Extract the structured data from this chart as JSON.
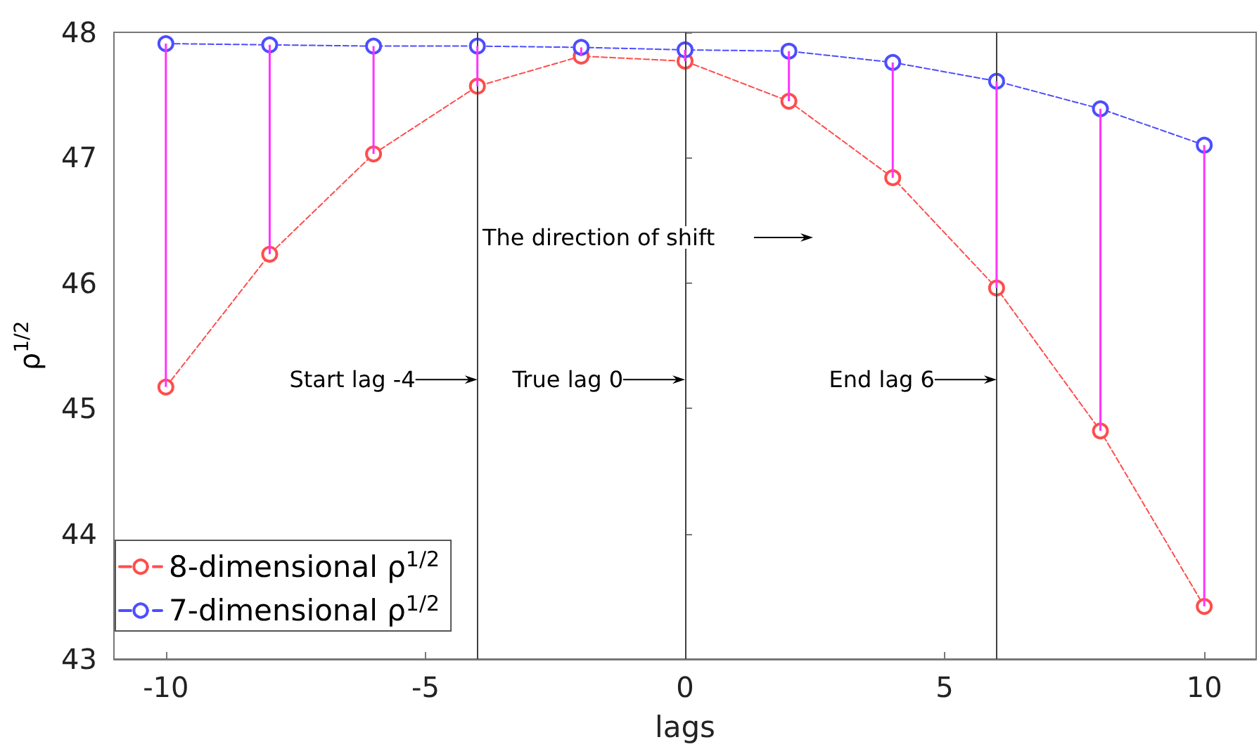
{
  "chart_data": {
    "type": "line",
    "xlabel": "lags",
    "ylabel": "ρ$^{1/2}$",
    "x": [
      -10,
      -8,
      -6,
      -4,
      -2,
      0,
      2,
      4,
      6,
      8,
      10
    ],
    "xlim": [
      -11,
      11
    ],
    "xticks": [
      -10,
      -5,
      0,
      5,
      10
    ],
    "ylim": [
      43,
      48
    ],
    "yticks": [
      43,
      44,
      45,
      46,
      47,
      48
    ],
    "grid": false,
    "legend": "bottom left",
    "marker": "circle",
    "line_style": "dashed",
    "series": [
      {
        "name": "8-dimensional ρ$^{1/2}$",
        "color": "#ff4d4d",
        "values": [
          45.17,
          46.23,
          47.03,
          47.57,
          47.81,
          47.77,
          47.45,
          46.84,
          45.96,
          44.82,
          43.42
        ],
        "errors": [
          [
            45.17,
            47.91
          ],
          [
            46.23,
            47.9
          ],
          [
            47.03,
            47.89
          ],
          [
            47.57,
            47.89
          ],
          [
            47.81,
            47.88
          ],
          [
            47.77,
            47.86
          ],
          [
            47.45,
            47.85
          ],
          [
            46.84,
            47.76
          ],
          [
            45.96,
            47.61
          ],
          [
            44.82,
            47.39
          ],
          [
            43.42,
            47.1
          ]
        ]
      },
      {
        "name": "7-dimensional ρ$^{1/2}$",
        "color": "#4d4dff",
        "values": [
          47.91,
          47.9,
          47.89,
          47.89,
          47.88,
          47.86,
          47.85,
          47.76,
          47.61,
          47.39,
          47.1
        ]
      }
    ],
    "ref_lines": [
      {
        "axis": "x",
        "value": -4,
        "color": "#404040"
      },
      {
        "axis": "x",
        "value": 0,
        "color": "#404040"
      },
      {
        "axis": "x",
        "value": 6,
        "color": "#404040"
      }
    ],
    "annotations": [
      {
        "text": "Start lag -4",
        "x": -4,
        "y": 45.23
      },
      {
        "text": "True lag 0",
        "x": 0,
        "y": 45.23
      },
      {
        "text": "End lag 6",
        "x": 6,
        "y": 45.23
      },
      "The direction of shift"
    ]
  }
}
